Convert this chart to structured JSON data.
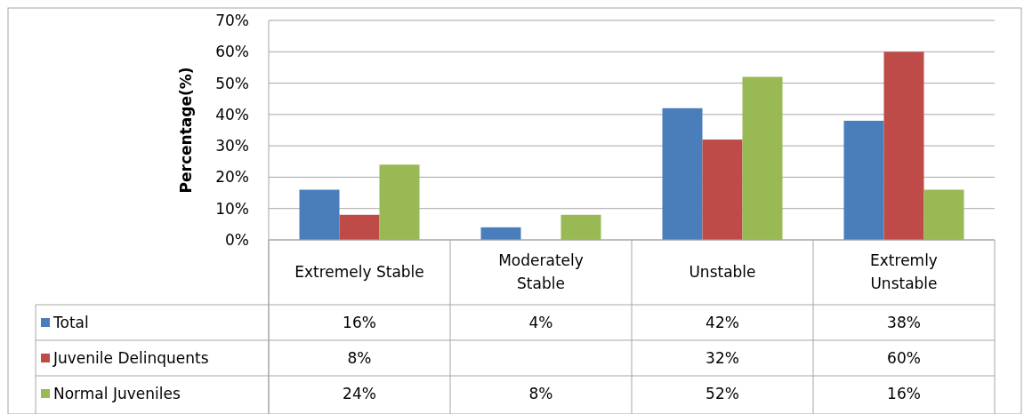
{
  "chart_data": {
    "type": "bar",
    "ylabel": "Percentage(%)",
    "categories": [
      "Extremely Stable",
      "Moderately Stable",
      "Unstable",
      "Extremly Unstable"
    ],
    "series": [
      {
        "name": "Total",
        "color": "#4a7ebb",
        "values": [
          16,
          4,
          42,
          38
        ],
        "value_labels": [
          "16%",
          "4%",
          "42%",
          "38%"
        ]
      },
      {
        "name": "Juvenile Delinquents",
        "color": "#be4b48",
        "values": [
          8,
          null,
          32,
          60
        ],
        "value_labels": [
          "8%",
          null,
          "32%",
          "60%"
        ]
      },
      {
        "name": "Normal Juveniles",
        "color": "#98b954",
        "values": [
          24,
          8,
          52,
          16
        ],
        "value_labels": [
          "24%",
          "8%",
          "52%",
          "16%"
        ]
      }
    ],
    "ylim": [
      0,
      70
    ],
    "yticks": [
      {
        "value": 0,
        "label": "0%"
      },
      {
        "value": 10,
        "label": "10%"
      },
      {
        "value": 20,
        "label": "20%"
      },
      {
        "value": 30,
        "label": "30%"
      },
      {
        "value": 40,
        "label": "40%"
      },
      {
        "value": 50,
        "label": "50%"
      },
      {
        "value": 60,
        "label": "60%"
      },
      {
        "value": 70,
        "label": "70%"
      }
    ],
    "grid": "y",
    "legend": "bottom left"
  }
}
